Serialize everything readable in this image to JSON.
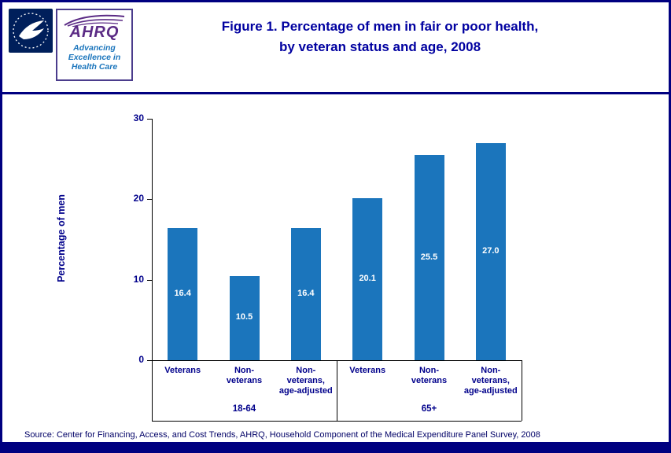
{
  "header": {
    "title_line1": "Figure 1. Percentage of men in fair or poor health,",
    "title_line2": "by veteran status and age, 2008",
    "ahrq": {
      "name": "AHRQ",
      "tagline": "Advancing\nExcellence in\nHealth Care"
    }
  },
  "chart_data": {
    "type": "bar",
    "title": "Figure 1. Percentage of men in fair or poor health, by veteran status and age, 2008",
    "ylabel": "Percentage of men",
    "xlabel": "",
    "ylim": [
      0,
      30
    ],
    "yticks": [
      0,
      10,
      20,
      30
    ],
    "grid": false,
    "legend": false,
    "bar_color": "#1b75bc",
    "groups": [
      {
        "label": "18-64",
        "categories": [
          "Veterans",
          "Non-veterans",
          "Non-veterans, age-adjusted"
        ],
        "category_lines": [
          "Veterans",
          "Non-\nveterans",
          "Non-\nveterans,\nage-adjusted"
        ],
        "values": [
          16.4,
          10.5,
          16.4
        ]
      },
      {
        "label": "65+",
        "categories": [
          "Veterans",
          "Non-veterans",
          "Non-veterans, age-adjusted"
        ],
        "category_lines": [
          "Veterans",
          "Non-\nveterans",
          "Non-\nveterans,\nage-adjusted"
        ],
        "values": [
          20.1,
          25.5,
          27.0
        ]
      }
    ]
  },
  "footer": {
    "source": "Source: Center for Financing, Access, and Cost Trends, AHRQ, Household Component of the Medical Expenditure Panel Survey, 2008"
  },
  "colors": {
    "border": "#000080",
    "title": "#0000a0",
    "bar": "#1b75bc",
    "axis_text": "#00008b",
    "ahrq_purple": "#5b2b85",
    "ahrq_blue": "#1b75bc"
  }
}
